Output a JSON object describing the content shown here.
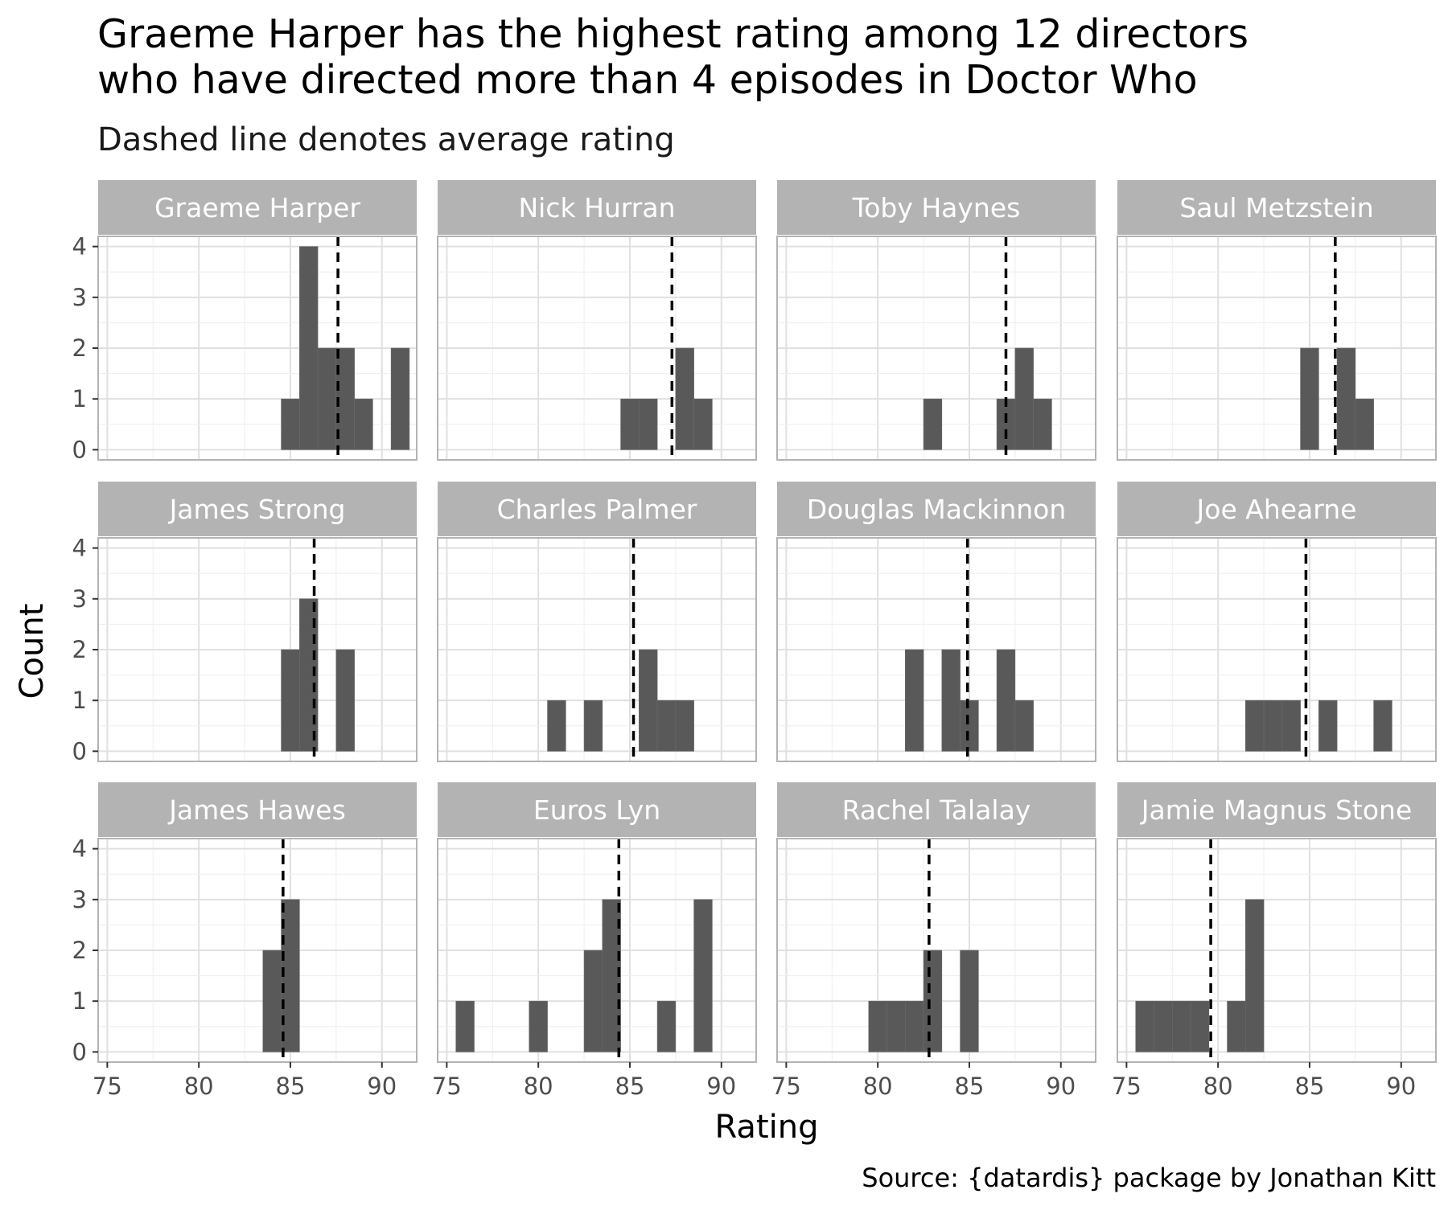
{
  "chart": {
    "title_lines": [
      "Graeme Harper has the highest rating among 12 directors",
      "who have directed more than 4 episodes in Doctor Who"
    ],
    "subtitle": "Dashed line denotes average rating",
    "caption": "Source: {datardis} package by Jonathan Kitt"
  },
  "chart_data": {
    "type": "bar",
    "subtype": "faceted histogram",
    "title": "Graeme Harper has the highest rating among 12 directors who have directed more than 4 episodes in Doctor Who",
    "subtitle": "Dashed line denotes average rating",
    "xlabel": "Rating",
    "ylabel": "Count",
    "caption": "Source: {datardis} package by Jonathan Kitt",
    "xlim": [
      74.5,
      91.9
    ],
    "ylim": [
      -0.2,
      4.2
    ],
    "x_ticks": [
      75,
      80,
      85,
      90
    ],
    "y_ticks": [
      0,
      1,
      2,
      3,
      4
    ],
    "bin_width": 1,
    "grid": true,
    "colors": {
      "bar": "#595959",
      "strip": "#b3b3b3",
      "strip_text": "#ffffff",
      "grid": "#e0e0e0",
      "border": "#b3b3b3",
      "mean_line": "#000000"
    },
    "facets": [
      {
        "director": "Graeme Harper",
        "mean": 87.6,
        "bins": [
          {
            "x": 85,
            "count": 1
          },
          {
            "x": 86,
            "count": 4
          },
          {
            "x": 87,
            "count": 2
          },
          {
            "x": 88,
            "count": 2
          },
          {
            "x": 89,
            "count": 1
          },
          {
            "x": 91,
            "count": 2
          }
        ]
      },
      {
        "director": "Nick Hurran",
        "mean": 87.3,
        "bins": [
          {
            "x": 85,
            "count": 1
          },
          {
            "x": 86,
            "count": 1
          },
          {
            "x": 88,
            "count": 2
          },
          {
            "x": 89,
            "count": 1
          }
        ]
      },
      {
        "director": "Toby Haynes",
        "mean": 87.0,
        "bins": [
          {
            "x": 83,
            "count": 1
          },
          {
            "x": 87,
            "count": 1
          },
          {
            "x": 88,
            "count": 2
          },
          {
            "x": 89,
            "count": 1
          }
        ]
      },
      {
        "director": "Saul Metzstein",
        "mean": 86.4,
        "bins": [
          {
            "x": 85,
            "count": 2
          },
          {
            "x": 87,
            "count": 2
          },
          {
            "x": 88,
            "count": 1
          }
        ]
      },
      {
        "director": "James Strong",
        "mean": 86.3,
        "bins": [
          {
            "x": 85,
            "count": 2
          },
          {
            "x": 86,
            "count": 3
          },
          {
            "x": 88,
            "count": 2
          }
        ]
      },
      {
        "director": "Charles Palmer",
        "mean": 85.2,
        "bins": [
          {
            "x": 81,
            "count": 1
          },
          {
            "x": 83,
            "count": 1
          },
          {
            "x": 86,
            "count": 2
          },
          {
            "x": 87,
            "count": 1
          },
          {
            "x": 88,
            "count": 1
          }
        ]
      },
      {
        "director": "Douglas Mackinnon",
        "mean": 84.9,
        "bins": [
          {
            "x": 82,
            "count": 2
          },
          {
            "x": 84,
            "count": 2
          },
          {
            "x": 85,
            "count": 1
          },
          {
            "x": 87,
            "count": 2
          },
          {
            "x": 88,
            "count": 1
          }
        ]
      },
      {
        "director": "Joe Ahearne",
        "mean": 84.8,
        "bins": [
          {
            "x": 82,
            "count": 1
          },
          {
            "x": 83,
            "count": 1
          },
          {
            "x": 84,
            "count": 1
          },
          {
            "x": 86,
            "count": 1
          },
          {
            "x": 89,
            "count": 1
          }
        ]
      },
      {
        "director": "James Hawes",
        "mean": 84.6,
        "bins": [
          {
            "x": 84,
            "count": 2
          },
          {
            "x": 85,
            "count": 3
          }
        ]
      },
      {
        "director": "Euros Lyn",
        "mean": 84.4,
        "bins": [
          {
            "x": 76,
            "count": 1
          },
          {
            "x": 80,
            "count": 1
          },
          {
            "x": 83,
            "count": 2
          },
          {
            "x": 84,
            "count": 3
          },
          {
            "x": 87,
            "count": 1
          },
          {
            "x": 89,
            "count": 3
          }
        ]
      },
      {
        "director": "Rachel Talalay",
        "mean": 82.8,
        "bins": [
          {
            "x": 80,
            "count": 1
          },
          {
            "x": 81,
            "count": 1
          },
          {
            "x": 82,
            "count": 1
          },
          {
            "x": 83,
            "count": 2
          },
          {
            "x": 85,
            "count": 2
          }
        ]
      },
      {
        "director": "Jamie Magnus Stone",
        "mean": 79.6,
        "bins": [
          {
            "x": 76,
            "count": 1
          },
          {
            "x": 77,
            "count": 1
          },
          {
            "x": 78,
            "count": 1
          },
          {
            "x": 79,
            "count": 1
          },
          {
            "x": 81,
            "count": 1
          },
          {
            "x": 82,
            "count": 3
          }
        ]
      }
    ]
  }
}
